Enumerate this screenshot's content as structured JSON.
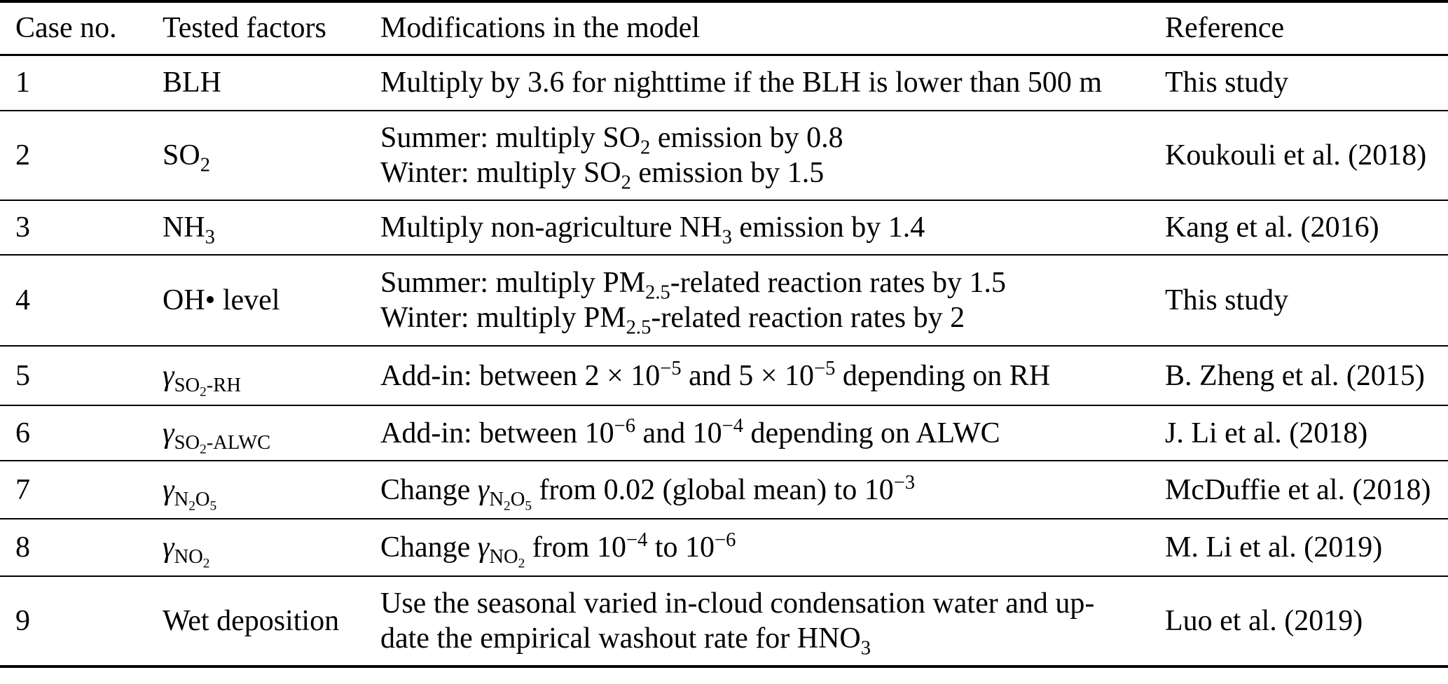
{
  "colors": {
    "background": "#ffffff",
    "text": "#000000",
    "rule": "#000000"
  },
  "table": {
    "headers": {
      "case_no": "Case no.",
      "tested_factors": "Tested factors",
      "modifications": "Modifications in the model",
      "reference": "Reference"
    },
    "rows": [
      {
        "case_no": "1",
        "factor": "BLH",
        "modification": "Multiply by 3.6 for nighttime if the BLH is lower than 500 m",
        "reference": "This study"
      },
      {
        "case_no": "2",
        "factor": "SO_{2}",
        "modification": "Summer: multiply SO_{2} emission by 0.8\nWinter: multiply SO_{2} emission by 1.5",
        "reference": "Koukouli et al. (2018)"
      },
      {
        "case_no": "3",
        "factor": "NH_{3}",
        "modification": "Multiply non-agriculture NH_{3} emission by 1.4",
        "reference": "Kang et al. (2016)"
      },
      {
        "case_no": "4",
        "factor": "OH• level",
        "modification": "Summer: multiply PM_{2.5}-related reaction rates by 1.5\nWinter: multiply PM_{2.5}-related reaction rates by 2",
        "reference": "This study"
      },
      {
        "case_no": "5",
        "factor": "/{γ}_{SO_{2}-RH}",
        "modification": "Add-in: between 2 × 10^{−5} and 5 × 10^{−5} depending on RH",
        "reference": "B. Zheng et al. (2015)"
      },
      {
        "case_no": "6",
        "factor": "/{γ}_{SO_{2}-ALWC}",
        "modification": "Add-in: between 10^{−6} and 10^{−4} depending on ALWC",
        "reference": "J. Li et al. (2018)"
      },
      {
        "case_no": "7",
        "factor": "/{γ}_{N_{2}O_{5}}",
        "modification": "Change /{γ}_{N_{2}O_{5}} from 0.02 (global mean) to 10^{−3}",
        "reference": "McDuffie et al. (2018)"
      },
      {
        "case_no": "8",
        "factor": "/{γ}_{NO_{2}}",
        "modification": "Change /{γ}_{NO_{2}} from 10^{−4} to 10^{−6}",
        "reference": "M. Li et al. (2019)"
      },
      {
        "case_no": "9",
        "factor": "Wet deposition",
        "modification": "Use the seasonal varied in-cloud condensation water and up-\ndate the empirical washout rate for HNO_{3}",
        "reference": "Luo et al. (2019)"
      }
    ]
  }
}
